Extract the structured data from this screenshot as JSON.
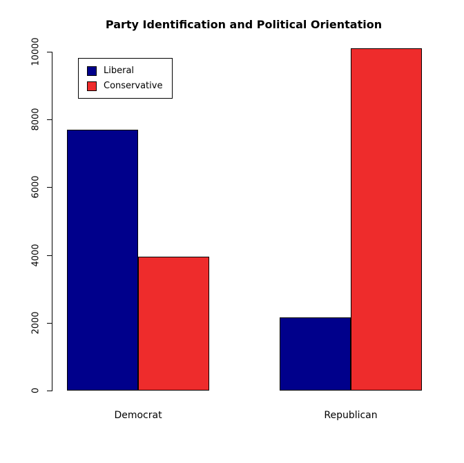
{
  "title": "Party Identification and Political Orientation",
  "chart_data": {
    "type": "bar",
    "title": "Party Identification and Political Orientation",
    "categories": [
      "Democrat",
      "Republican"
    ],
    "series": [
      {
        "name": "Liberal",
        "color": "#00008B",
        "values": [
          7700,
          2150
        ]
      },
      {
        "name": "Conservative",
        "color": "#EE2C2C",
        "values": [
          3950,
          10100
        ]
      }
    ],
    "xlabel": "",
    "ylabel": "",
    "ylim": [
      0,
      10000
    ],
    "yticks": [
      0,
      2000,
      4000,
      6000,
      8000,
      10000
    ],
    "grid": false,
    "bar_border_color": "#000000",
    "legend": {
      "position": "top-left",
      "entries": [
        "Liberal",
        "Conservative"
      ]
    }
  }
}
